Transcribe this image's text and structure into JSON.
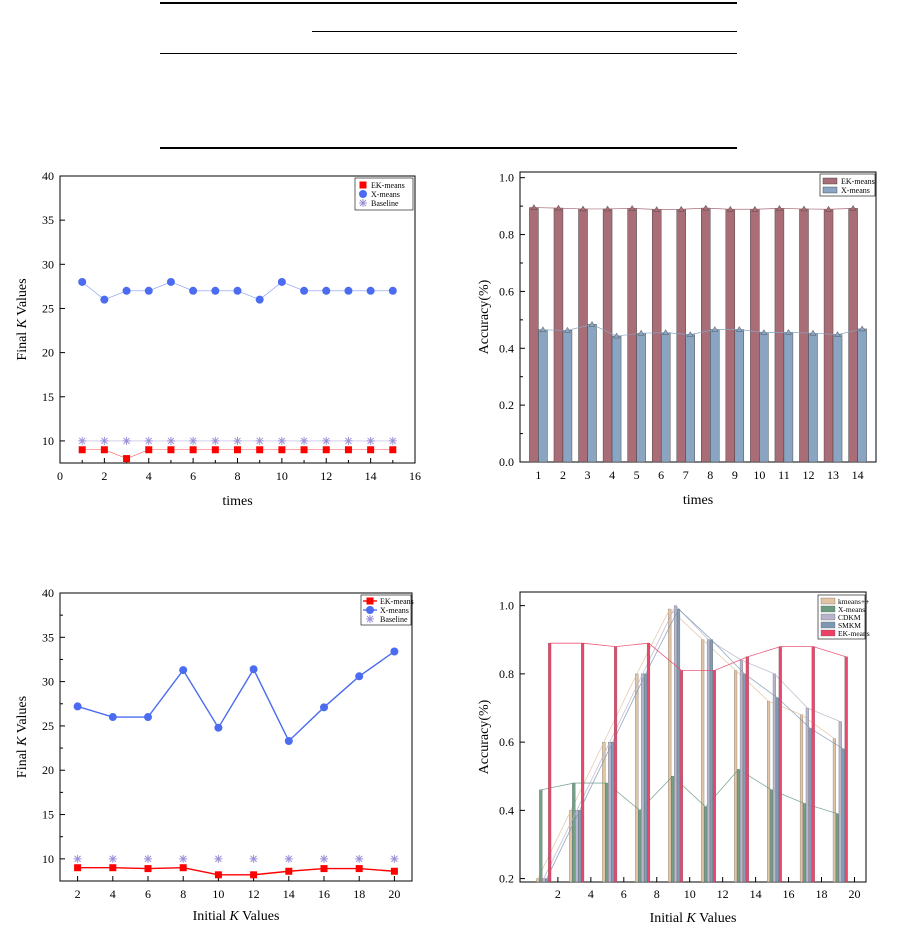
{
  "chart_data": [
    {
      "id": "c1",
      "type": "scatter",
      "xlabel": "times",
      "ylabel_pre": "Final ",
      "ylabel_var": "K",
      "ylabel_post": " Values",
      "xlim": [
        0,
        16
      ],
      "ylim": [
        7.5,
        40
      ],
      "xticks": [
        0,
        2,
        4,
        6,
        8,
        10,
        12,
        14,
        16
      ],
      "yticks": [
        10,
        15,
        20,
        25,
        30,
        35,
        40
      ],
      "legend_position": "top-right",
      "series": [
        {
          "name": "EK-means",
          "color": "#ff0000",
          "marker": "square",
          "x": [
            1,
            2,
            3,
            4,
            5,
            6,
            7,
            8,
            9,
            10,
            11,
            12,
            13,
            14,
            15
          ],
          "y": [
            9,
            9,
            8,
            9,
            9,
            9,
            9,
            9,
            9,
            9,
            9,
            9,
            9,
            9,
            9
          ]
        },
        {
          "name": "X-means",
          "color": "#4b6cf0",
          "marker": "circle",
          "x": [
            1,
            2,
            3,
            4,
            5,
            6,
            7,
            8,
            9,
            10,
            11,
            12,
            13,
            14,
            15
          ],
          "y": [
            28,
            26,
            27,
            27,
            28,
            27,
            27,
            27,
            26,
            28,
            27,
            27,
            27,
            27,
            27
          ]
        },
        {
          "name": "Baseline",
          "color": "#9a90d8",
          "marker": "star",
          "x": [
            1,
            2,
            3,
            4,
            5,
            6,
            7,
            8,
            9,
            10,
            11,
            12,
            13,
            14,
            15
          ],
          "y": [
            10,
            10,
            10,
            10,
            10,
            10,
            10,
            10,
            10,
            10,
            10,
            10,
            10,
            10,
            10
          ]
        }
      ]
    },
    {
      "id": "c2",
      "type": "bar",
      "xlabel": "times",
      "ylabel": "Accuracy(%)",
      "ylim": [
        0,
        1.02
      ],
      "yticks": [
        0.0,
        0.2,
        0.4,
        0.6,
        0.8,
        1.0
      ],
      "ytick_labels": [
        "0.0",
        "0.2",
        "0.4",
        "0.6",
        "0.8",
        "1.0"
      ],
      "categories": [
        "1",
        "2",
        "3",
        "4",
        "5",
        "6",
        "7",
        "8",
        "9",
        "10",
        "11",
        "12",
        "13",
        "14"
      ],
      "legend_position": "top-right",
      "series": [
        {
          "name": "EK-means",
          "color": "#a86d76",
          "values": [
            0.895,
            0.893,
            0.89,
            0.89,
            0.892,
            0.888,
            0.889,
            0.893,
            0.889,
            0.889,
            0.892,
            0.89,
            0.889,
            0.892
          ]
        },
        {
          "name": "X-means",
          "color": "#8aa5c2",
          "values": [
            0.465,
            0.463,
            0.484,
            0.443,
            0.453,
            0.455,
            0.448,
            0.466,
            0.466,
            0.455,
            0.456,
            0.453,
            0.448,
            0.468
          ]
        }
      ]
    },
    {
      "id": "c3",
      "type": "line",
      "xlabel_pre": "Initial ",
      "xlabel_var": "K",
      "xlabel_post": " Values",
      "ylabel_pre": "Final ",
      "ylabel_var": "K",
      "ylabel_post": " Values",
      "xlim": [
        1,
        21
      ],
      "ylim": [
        7.5,
        40
      ],
      "xticks": [
        2,
        4,
        6,
        8,
        10,
        12,
        14,
        16,
        18,
        20
      ],
      "yticks": [
        10,
        15,
        20,
        25,
        30,
        35,
        40
      ],
      "legend_position": "top-right",
      "series": [
        {
          "name": "EK-means",
          "color": "#ff0000",
          "marker": "square",
          "x": [
            2,
            4,
            6,
            8,
            10,
            12,
            14,
            16,
            18,
            20
          ],
          "y": [
            9.0,
            9.0,
            8.9,
            9.0,
            8.2,
            8.2,
            8.6,
            8.9,
            8.9,
            8.6
          ]
        },
        {
          "name": "X-means",
          "color": "#4b6cf0",
          "marker": "circle",
          "x": [
            2,
            4,
            6,
            8,
            10,
            12,
            14,
            16,
            18,
            20
          ],
          "y": [
            27.2,
            26.0,
            26.0,
            31.3,
            24.8,
            31.4,
            23.3,
            27.1,
            30.6,
            33.4
          ]
        },
        {
          "name": "Baseline",
          "color": "#9a90d8",
          "marker": "star",
          "x": [
            2,
            4,
            6,
            8,
            10,
            12,
            14,
            16,
            18,
            20
          ],
          "y": [
            10,
            10,
            10,
            10,
            10,
            10,
            10,
            10,
            10,
            10
          ]
        }
      ]
    },
    {
      "id": "c4",
      "type": "bar",
      "xlabel_pre": "Initial ",
      "xlabel_var": "K",
      "xlabel_post": " Values",
      "ylabel": "Accuracy(%)",
      "ylim": [
        0.19,
        1.04
      ],
      "yticks": [
        0.2,
        0.4,
        0.6,
        0.8,
        1.0
      ],
      "ytick_labels": [
        "0.2",
        "0.4",
        "0.6",
        "0.8",
        "1.0"
      ],
      "categories": [
        "1",
        "2",
        "3",
        "4",
        "5",
        "6",
        "7",
        "8",
        "9",
        "10",
        "11",
        "12",
        "13",
        "14",
        "15",
        "16",
        "17",
        "18",
        "19",
        "20"
      ],
      "xtick_labels": {
        "2": "2",
        "4": "4",
        "6": "6",
        "8": "8",
        "10": "10",
        "12": "12",
        "14": "14",
        "16": "16",
        "18": "18",
        "20": "20"
      },
      "legend_position": "top-right",
      "series": [
        {
          "name": "kmeans++",
          "color": "#e2c3a2",
          "values": [
            0.2,
            0.2,
            0.4,
            0.4,
            0.6,
            0.6,
            0.8,
            0.8,
            0.99,
            0.99,
            0.9,
            0.9,
            0.81,
            0.81,
            0.72,
            0.72,
            0.68,
            0.68,
            0.61,
            0.61
          ]
        },
        {
          "name": "X-means",
          "color": "#6c9c80",
          "values": [
            0.46,
            0.46,
            0.48,
            0.48,
            0.48,
            0.48,
            0.4,
            0.4,
            0.5,
            0.5,
            0.41,
            0.41,
            0.52,
            0.52,
            0.46,
            0.46,
            0.42,
            0.42,
            0.39,
            0.39
          ]
        },
        {
          "name": "CDKM",
          "color": "#b8b4cc",
          "values": [
            0.2,
            0.2,
            0.4,
            0.4,
            0.6,
            0.6,
            0.8,
            0.8,
            1.0,
            1.0,
            0.9,
            0.9,
            0.84,
            0.84,
            0.8,
            0.8,
            0.7,
            0.7,
            0.66,
            0.66
          ]
        },
        {
          "name": "SMKM",
          "color": "#7e98b4",
          "values": [
            0.2,
            0.2,
            0.4,
            0.4,
            0.6,
            0.6,
            0.8,
            0.8,
            0.99,
            0.99,
            0.9,
            0.9,
            0.8,
            0.8,
            0.73,
            0.73,
            0.64,
            0.64,
            0.58,
            0.58
          ]
        },
        {
          "name": "EK-means",
          "color": "#ec3f66",
          "values": [
            0.89,
            0.89,
            0.89,
            0.89,
            0.88,
            0.88,
            0.89,
            0.89,
            0.81,
            0.81,
            0.81,
            0.81,
            0.85,
            0.85,
            0.88,
            0.88,
            0.88,
            0.88,
            0.85,
            0.85
          ]
        }
      ]
    }
  ]
}
